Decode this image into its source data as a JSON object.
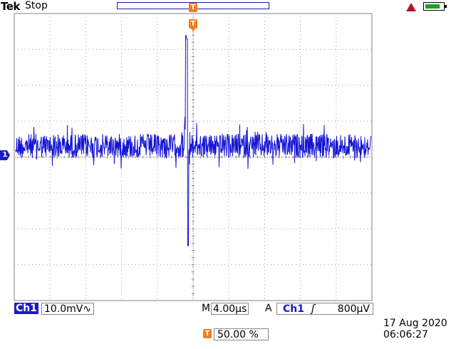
{
  "header": {
    "brand": "Tek",
    "acq_state": "Stop",
    "trigger_marker": "T"
  },
  "channel": {
    "marker": "1",
    "name": "Ch1",
    "scale": "10.0mV",
    "coupling_symbol": "∿"
  },
  "timebase": {
    "label": "M",
    "value": "4.00µs"
  },
  "trigger": {
    "mode": "A",
    "source": "Ch1",
    "slope_symbol": "ʃ",
    "level": "800µV",
    "position_marker": "T",
    "position_value": "50.00 %"
  },
  "datetime": {
    "date": "17 Aug 2020",
    "time": "06:06:27"
  },
  "colors": {
    "trace": "#1515d4",
    "trigger": "#f07d1e",
    "channel": "#1a1acc",
    "battery": "#1f9f1f",
    "warning": "#b3122e"
  },
  "icons": [
    "warning-triangle-icon",
    "battery-icon",
    "trigger-marker-icon",
    "ch1-ground-marker-icon"
  ]
}
